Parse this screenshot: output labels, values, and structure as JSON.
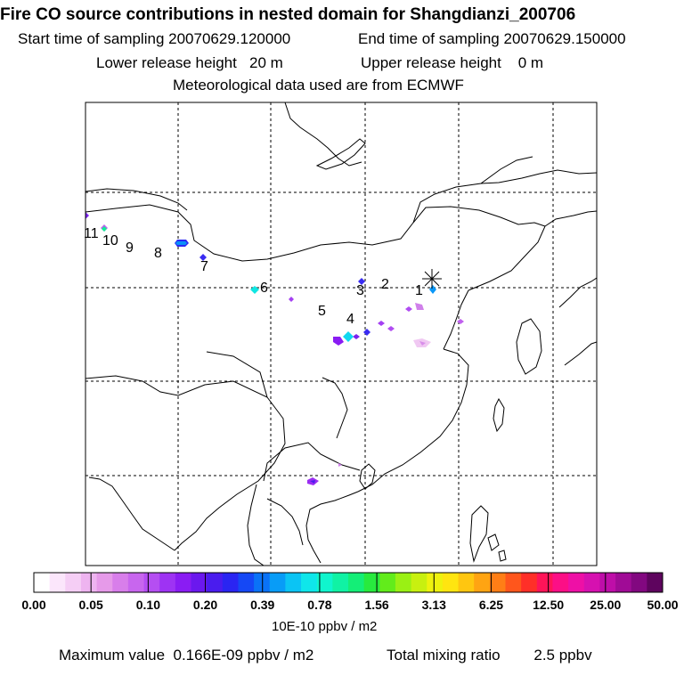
{
  "title": "Fire CO source contributions in nested domain for Shangdianzi_200706",
  "sampling": {
    "start_label": "Start time of sampling",
    "start_value": "20070629.120000",
    "end_label": "End time of sampling",
    "end_value": "20070629.150000"
  },
  "release": {
    "lower_label": "Lower release height",
    "lower_value": "20 m",
    "upper_label": "Upper release height",
    "upper_value": "0 m"
  },
  "met_note": "Meteorological data used are from ECMWF",
  "map": {
    "receptor_marker": "asterisk-icon",
    "trajectory_labels": [
      "1",
      "2",
      "3",
      "4",
      "5",
      "6",
      "7",
      "8",
      "9",
      "10",
      "11"
    ]
  },
  "colorbar": {
    "colors": [
      "#ffffff",
      "#fbe6fb",
      "#f5cef5",
      "#eeb4f0",
      "#e69ae9",
      "#d87eea",
      "#c866ee",
      "#b54ef2",
      "#9e33f3",
      "#8a1cf3",
      "#6b18ee",
      "#4a1cee",
      "#2a25f2",
      "#1548f5",
      "#0a72f7",
      "#089cf7",
      "#0bc4f4",
      "#0fe6ea",
      "#10f5cd",
      "#10f2a4",
      "#14ee77",
      "#28ea3e",
      "#62ec1b",
      "#9af014",
      "#c8f010",
      "#eef20e",
      "#ffe510",
      "#ffc610",
      "#ffa412",
      "#ff7e16",
      "#ff561c",
      "#ff2f28",
      "#ff1458",
      "#fc0f86",
      "#ee10a6",
      "#d611b0",
      "#be0ea8",
      "#a00b96",
      "#820880",
      "#5e045e"
    ],
    "ticks": [
      "0.00",
      "0.05",
      "0.10",
      "0.20",
      "0.39",
      "0.78",
      "1.56",
      "3.13",
      "6.25",
      "12.50",
      "25.00",
      "50.00"
    ],
    "units": "10E-10 ppbv / m2"
  },
  "footer": {
    "max_label": "Maximum value",
    "max_value": "0.166E-09 ppbv / m2",
    "total_label": "Total mixing ratio",
    "total_value": "2.5 ppbv"
  }
}
